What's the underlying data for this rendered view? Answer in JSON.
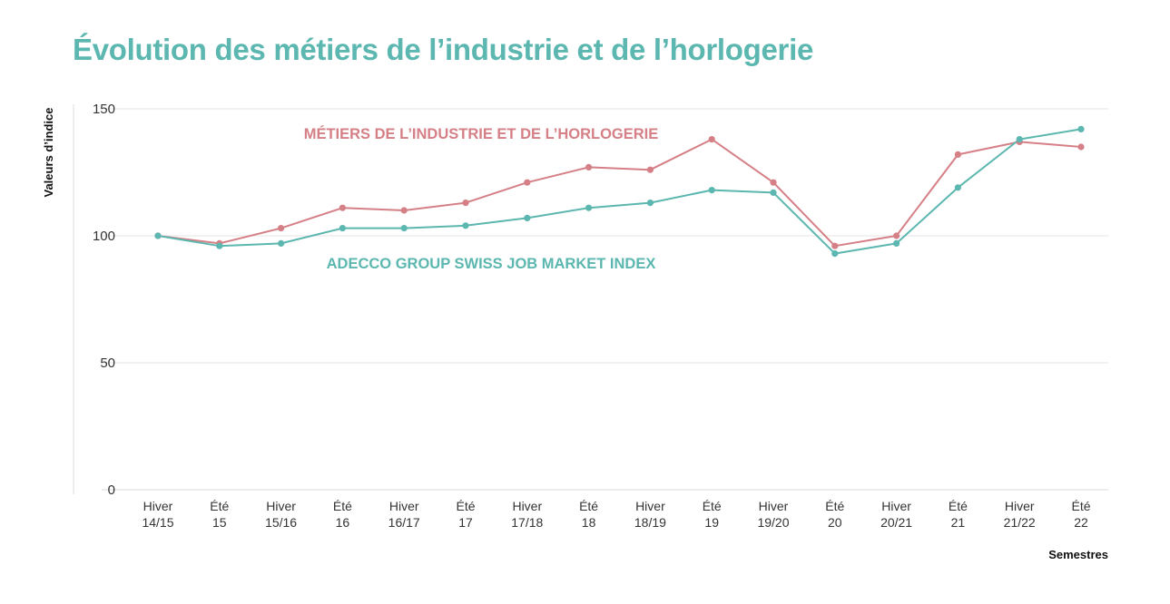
{
  "colors": {
    "title": "#5bb7af",
    "series_industry": "#d57f86",
    "series_adecco": "#5bb7af",
    "grid": "#e4e4e4",
    "axis": "#dddddd"
  },
  "chart_data": {
    "type": "line",
    "title": "Évolution des métiers de l’industrie et de l’horlogerie",
    "xlabel": "Semestres",
    "ylabel": "Valeurs d’indice",
    "ylim": [
      0,
      150
    ],
    "yticks": [
      "0",
      "50",
      "100",
      "150"
    ],
    "grid": true,
    "categories": [
      [
        "Hiver",
        "14/15"
      ],
      [
        "Été",
        "15"
      ],
      [
        "Hiver",
        "15/16"
      ],
      [
        "Été",
        "16"
      ],
      [
        "Hiver",
        "16/17"
      ],
      [
        "Été",
        "17"
      ],
      [
        "Hiver",
        "17/18"
      ],
      [
        "Été",
        "18"
      ],
      [
        "Hiver",
        "18/19"
      ],
      [
        "Été",
        "19"
      ],
      [
        "Hiver",
        "19/20"
      ],
      [
        "Été",
        "20"
      ],
      [
        "Hiver",
        "20/21"
      ],
      [
        "Été",
        "21"
      ],
      [
        "Hiver",
        "21/22"
      ],
      [
        "Été",
        "22"
      ]
    ],
    "series": [
      {
        "name": "MÉTIERS DE L’INDUSTRIE ET DE L’HORLOGERIE",
        "key": "industry",
        "values": [
          100,
          97,
          103,
          111,
          110,
          113,
          121,
          127,
          126,
          138,
          121,
          96,
          100,
          132,
          137,
          135
        ]
      },
      {
        "name": "ADECCO GROUP SWISS JOB MARKET INDEX",
        "key": "adecco",
        "values": [
          100,
          96,
          97,
          103,
          103,
          104,
          107,
          111,
          113,
          118,
          117,
          93,
          97,
          119,
          138,
          142
        ]
      }
    ]
  }
}
